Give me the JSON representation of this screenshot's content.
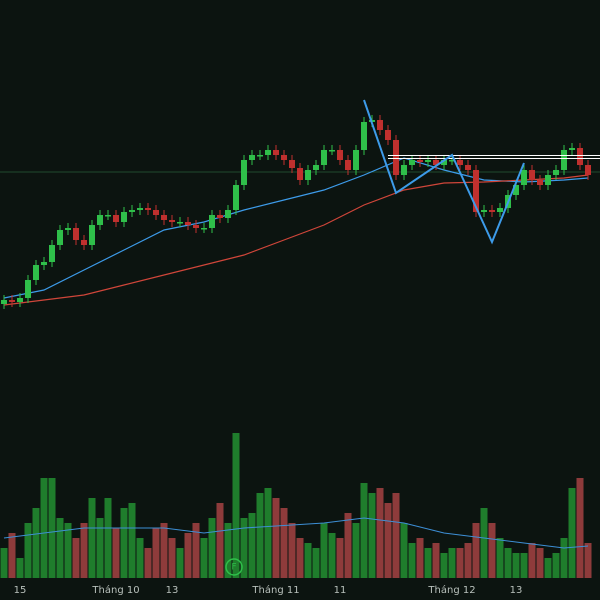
{
  "chart_data": {
    "type": "candlestick",
    "ylim": [
      0,
      600
    ],
    "vlim": [
      0,
      160
    ],
    "categories": [
      null,
      null,
      "15",
      null,
      null,
      null,
      null,
      null,
      null,
      null,
      null,
      null,
      null,
      null,
      "Tháng 10",
      null,
      null,
      null,
      null,
      null,
      null,
      "13",
      null,
      null,
      null,
      null,
      null,
      null,
      null,
      null,
      null,
      null,
      null,
      null,
      "Tháng 11",
      null,
      null,
      null,
      null,
      null,
      null,
      null,
      "11",
      null,
      null,
      null,
      null,
      null,
      null,
      null,
      null,
      null,
      null,
      null,
      null,
      null,
      "Tháng 12",
      null,
      null,
      null,
      null,
      null,
      null,
      null,
      "13",
      null,
      null,
      null,
      null,
      null,
      null,
      null,
      null,
      null
    ],
    "open": [
      296,
      300,
      298,
      302,
      320,
      335,
      338,
      355,
      370,
      372,
      360,
      355,
      375,
      385,
      385,
      378,
      388,
      390,
      392,
      390,
      385,
      380,
      378,
      378,
      375,
      372,
      372,
      385,
      382,
      390,
      415,
      440,
      445,
      445,
      450,
      445,
      440,
      432,
      420,
      430,
      435,
      450,
      450,
      440,
      430,
      450,
      478,
      480,
      470,
      460,
      425,
      435,
      440,
      438,
      440,
      435,
      440,
      440,
      435,
      430,
      388,
      390,
      388,
      392,
      405,
      415,
      430,
      420,
      415,
      425,
      430,
      450,
      452,
      435
    ],
    "high": [
      305,
      305,
      307,
      325,
      340,
      343,
      360,
      375,
      377,
      377,
      365,
      380,
      390,
      390,
      390,
      393,
      395,
      397,
      397,
      395,
      390,
      385,
      383,
      383,
      380,
      377,
      390,
      390,
      395,
      420,
      445,
      450,
      450,
      455,
      455,
      450,
      445,
      437,
      435,
      440,
      455,
      455,
      455,
      445,
      455,
      483,
      485,
      485,
      475,
      465,
      440,
      445,
      445,
      445,
      445,
      445,
      445,
      445,
      440,
      435,
      395,
      395,
      397,
      410,
      420,
      435,
      435,
      425,
      430,
      435,
      455,
      457,
      457,
      440
    ],
    "low": [
      291,
      293,
      293,
      297,
      315,
      330,
      333,
      350,
      365,
      355,
      350,
      350,
      370,
      380,
      373,
      373,
      383,
      385,
      385,
      380,
      375,
      373,
      373,
      370,
      367,
      367,
      367,
      377,
      377,
      385,
      410,
      435,
      440,
      440,
      440,
      435,
      427,
      415,
      415,
      425,
      430,
      445,
      435,
      425,
      425,
      445,
      473,
      465,
      455,
      420,
      420,
      430,
      433,
      433,
      430,
      430,
      435,
      430,
      425,
      383,
      383,
      383,
      383,
      387,
      400,
      410,
      415,
      410,
      410,
      420,
      425,
      445,
      430,
      420
    ],
    "close": [
      300,
      298,
      302,
      320,
      335,
      338,
      355,
      370,
      372,
      360,
      355,
      375,
      385,
      385,
      378,
      388,
      390,
      392,
      390,
      385,
      380,
      378,
      378,
      375,
      372,
      372,
      385,
      382,
      390,
      415,
      440,
      445,
      445,
      450,
      445,
      440,
      432,
      420,
      430,
      435,
      450,
      450,
      440,
      430,
      450,
      478,
      480,
      470,
      460,
      425,
      435,
      440,
      438,
      440,
      435,
      440,
      440,
      435,
      430,
      388,
      390,
      388,
      392,
      405,
      415,
      430,
      420,
      415,
      425,
      430,
      450,
      452,
      435,
      425
    ],
    "volume": [
      30,
      45,
      20,
      55,
      70,
      100,
      100,
      60,
      55,
      40,
      55,
      80,
      60,
      80,
      50,
      70,
      75,
      40,
      30,
      50,
      55,
      40,
      30,
      45,
      55,
      40,
      60,
      75,
      55,
      145,
      60,
      65,
      85,
      90,
      80,
      70,
      55,
      40,
      35,
      30,
      55,
      45,
      40,
      65,
      55,
      95,
      85,
      90,
      75,
      85,
      55,
      35,
      40,
      30,
      35,
      25,
      30,
      30,
      35,
      55,
      70,
      55,
      40,
      30,
      25,
      25,
      35,
      30,
      20,
      25,
      40,
      90,
      100,
      35
    ],
    "up_color": "#2fbf4a",
    "down_color": "#c0302e",
    "volume_up_color": "#1f7d2c",
    "volume_down_color": "#8e3b3b",
    "lines": [
      {
        "color": "#3d9be9",
        "x": [
          0,
          5,
          10,
          15,
          20,
          25,
          30,
          35,
          40,
          45,
          50,
          55,
          60,
          65,
          70,
          73
        ],
        "values": [
          302,
          310,
          330,
          350,
          370,
          378,
          390,
          400,
          410,
          425,
          442,
          430,
          420,
          418,
          420,
          422
        ]
      },
      {
        "color": "#d0463a",
        "x": [
          0,
          5,
          10,
          15,
          20,
          25,
          30,
          35,
          40,
          45,
          50,
          55,
          60,
          65,
          70,
          73
        ],
        "values": [
          295,
          300,
          305,
          315,
          325,
          335,
          345,
          360,
          375,
          395,
          410,
          417,
          418,
          420,
          422,
          425
        ]
      }
    ],
    "pattern": {
      "color": "#3d9be9",
      "x": [
        45,
        49,
        56,
        61,
        65
      ],
      "values": [
        500,
        407,
        445,
        358,
        437
      ]
    },
    "level": {
      "color": "#ffffff",
      "from": 48,
      "value": 443
    },
    "price_line": {
      "color": "#1f4a2e",
      "value": 428
    },
    "volume_line": {
      "color": "#3d8fd6",
      "x": [
        0,
        10,
        20,
        25,
        30,
        40,
        45,
        50,
        55,
        60,
        65,
        70,
        73
      ],
      "values": [
        40,
        50,
        50,
        45,
        50,
        55,
        60,
        55,
        45,
        40,
        35,
        30,
        32
      ]
    },
    "annotation": "F"
  }
}
